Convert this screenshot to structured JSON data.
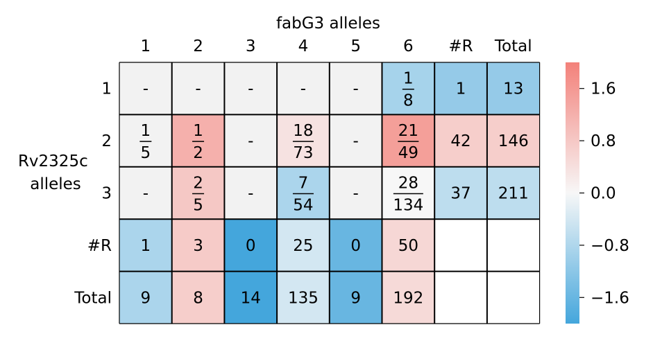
{
  "chart_data": {
    "type": "heatmap",
    "title": "fabG3 alleles",
    "xlabel": "fabG3 alleles",
    "ylabel": "Rv2325c alleles",
    "x_categories": [
      "1",
      "2",
      "3",
      "4",
      "5",
      "6",
      "#R",
      "Total"
    ],
    "y_categories": [
      "1",
      "2",
      "3",
      "#R",
      "Total"
    ],
    "cells": [
      [
        {
          "label": "-",
          "value": null
        },
        {
          "label": "-",
          "value": null
        },
        {
          "label": "-",
          "value": null
        },
        {
          "label": "-",
          "value": null
        },
        {
          "label": "-",
          "value": null
        },
        {
          "label": "1/8",
          "num": "1",
          "den": "8",
          "value": -0.9
        },
        {
          "label": "1",
          "value": -1.1
        },
        {
          "label": "13",
          "value": -1.1
        }
      ],
      [
        {
          "label": "1/5",
          "num": "1",
          "den": "5",
          "value": null
        },
        {
          "label": "1/2",
          "num": "1",
          "den": "2",
          "value": 1.2
        },
        {
          "label": "-",
          "value": null
        },
        {
          "label": "18/73",
          "num": "18",
          "den": "73",
          "value": 0.35
        },
        {
          "label": "-",
          "value": null
        },
        {
          "label": "21/49",
          "num": "21",
          "den": "49",
          "value": 1.5
        },
        {
          "label": "42",
          "value": 0.7
        },
        {
          "label": "146",
          "value": 0.7
        }
      ],
      [
        {
          "label": "-",
          "value": null
        },
        {
          "label": "2/5",
          "num": "2",
          "den": "5",
          "value": 0.8
        },
        {
          "label": "-",
          "value": null
        },
        {
          "label": "7/54",
          "num": "7",
          "den": "54",
          "value": -0.85
        },
        {
          "label": "-",
          "value": null
        },
        {
          "label": "28/134",
          "num": "28",
          "den": "134",
          "value": 0.0
        },
        {
          "label": "37",
          "value": -0.65
        },
        {
          "label": "211",
          "value": -0.65
        }
      ],
      [
        {
          "label": "1",
          "value": -0.85
        },
        {
          "label": "3",
          "value": 0.75
        },
        {
          "label": "0",
          "value": -2.0
        },
        {
          "label": "25",
          "value": -0.4
        },
        {
          "label": "0",
          "value": -1.6
        },
        {
          "label": "50",
          "value": 0.55
        },
        {
          "label": "",
          "value": "blank"
        },
        {
          "label": "",
          "value": "blank"
        }
      ],
      [
        {
          "label": "9",
          "value": -0.85
        },
        {
          "label": "8",
          "value": 0.7
        },
        {
          "label": "14",
          "value": -2.0
        },
        {
          "label": "135",
          "value": -0.4
        },
        {
          "label": "9",
          "value": -1.6
        },
        {
          "label": "192",
          "value": 0.5
        },
        {
          "label": "",
          "value": "blank"
        },
        {
          "label": "",
          "value": "blank"
        }
      ]
    ],
    "colorbar": {
      "ticks": [
        "1.6",
        "0.8",
        "0.0",
        "−0.8",
        "−1.6"
      ],
      "tick_values": [
        1.6,
        0.8,
        0.0,
        -0.8,
        -1.6
      ],
      "range": [
        -2.0,
        2.0
      ],
      "colors": {
        "low": "#44a6dc",
        "mid": "#f7f7f7",
        "high": "#f3817a"
      }
    },
    "empty_color": "#f2f2f2"
  }
}
